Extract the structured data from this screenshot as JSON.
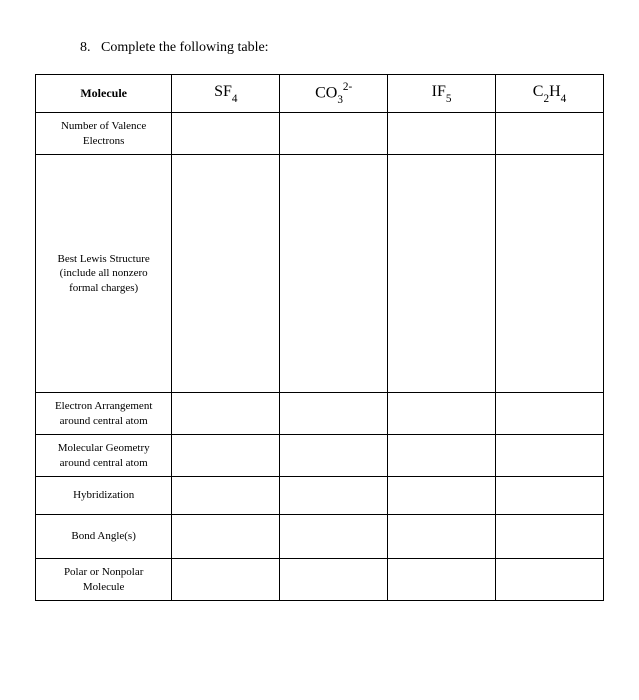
{
  "question": {
    "number": "8.",
    "text": "Complete the following table:"
  },
  "table": {
    "header_label": "Molecule",
    "columns": [
      {
        "base": "SF",
        "sub": "4",
        "sup": ""
      },
      {
        "base_a": "CO",
        "sub_a": "3",
        "sup": "2-"
      },
      {
        "base": "IF",
        "sub": "5",
        "sup": ""
      },
      {
        "base_a": "C",
        "sub_a": "2",
        "base_b": "H",
        "sub_b": "4",
        "sup": ""
      }
    ],
    "rows": [
      {
        "label": "Number of Valence Electrons",
        "class": "row-valence"
      },
      {
        "label": "Best Lewis Structure (include all nonzero formal charges)",
        "class": "row-lewis"
      },
      {
        "label": "Electron Arrangement around central atom",
        "class": "row-arrangement"
      },
      {
        "label": "Molecular Geometry around central atom",
        "class": "row-geometry"
      },
      {
        "label": "Hybridization",
        "class": "row-hybrid"
      },
      {
        "label": "Bond Angle(s)",
        "class": "row-bond"
      },
      {
        "label": "Polar or Nonpolar Molecule",
        "class": "row-polar"
      }
    ]
  }
}
